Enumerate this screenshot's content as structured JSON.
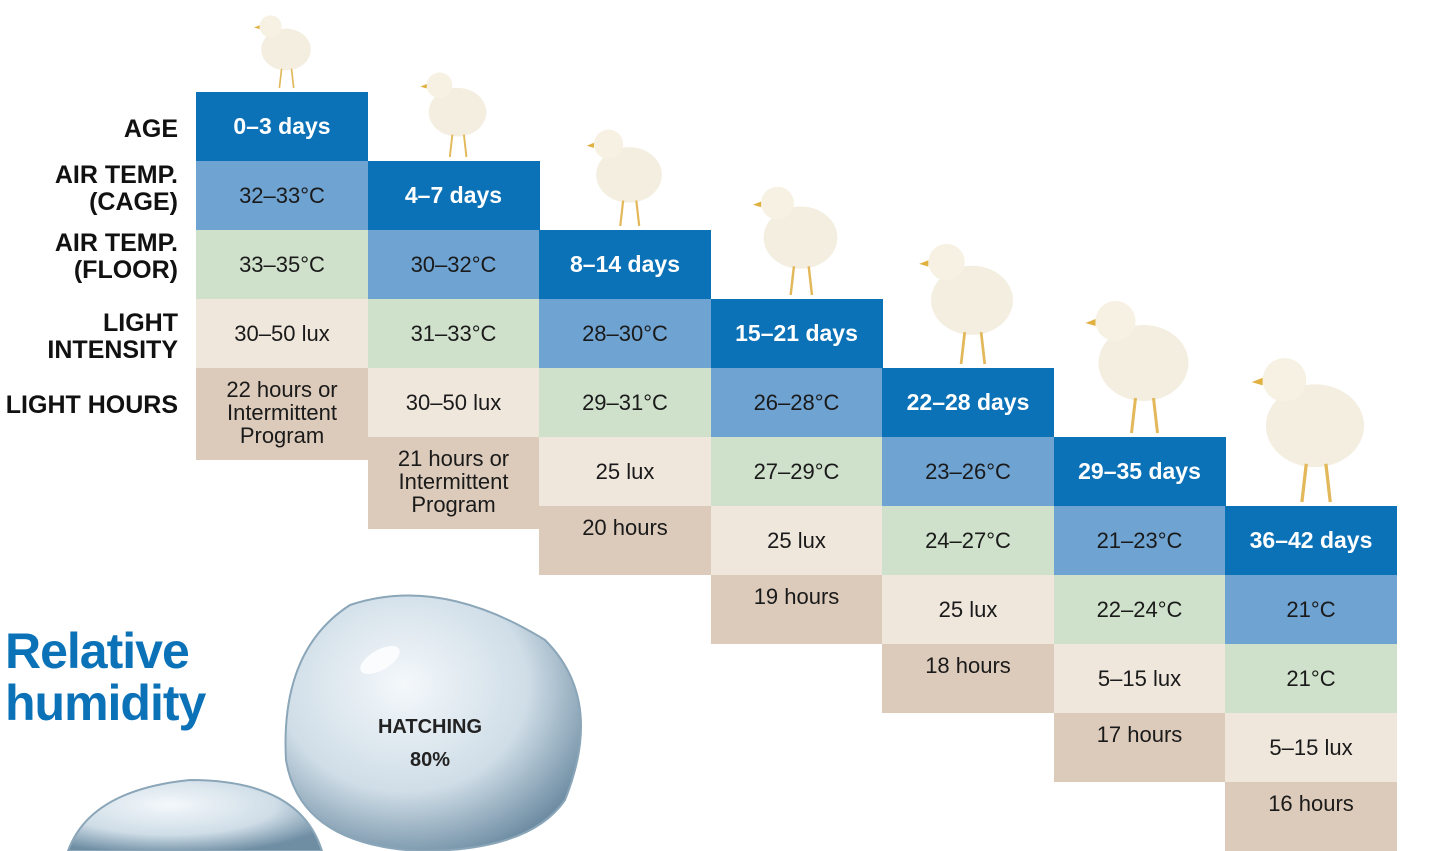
{
  "row_labels": [
    "AGE",
    "AIR TEMP. (CAGE)",
    "AIR TEMP. (FLOOR)",
    "LIGHT INTENSITY",
    "LIGHT HOURS"
  ],
  "columns": [
    {
      "age": "0–3 days",
      "cage": "32–33°C",
      "floor": "33–35°C",
      "intensity": "30–50 lux",
      "hours": "22 hours or Intermittent Program"
    },
    {
      "age": "4–7 days",
      "cage": "30–32°C",
      "floor": "31–33°C",
      "intensity": "30–50 lux",
      "hours": "21 hours or Intermittent Program"
    },
    {
      "age": "8–14 days",
      "cage": "28–30°C",
      "floor": "29–31°C",
      "intensity": "25 lux",
      "hours": "20 hours"
    },
    {
      "age": "15–21 days",
      "cage": "26–28°C",
      "floor": "27–29°C",
      "intensity": "25 lux",
      "hours": "19 hours"
    },
    {
      "age": "22–28 days",
      "cage": "23–26°C",
      "floor": "24–27°C",
      "intensity": "25 lux",
      "hours": "18 hours"
    },
    {
      "age": "29–35 days",
      "cage": "21–23°C",
      "floor": "22–24°C",
      "intensity": "5–15 lux",
      "hours": "17 hours"
    },
    {
      "age": "36–42 days",
      "cage": "21°C",
      "floor": "21°C",
      "intensity": "5–15 lux",
      "hours": "16 hours"
    }
  ],
  "humidity": {
    "title": "Relative humidity",
    "label": "HATCHING",
    "value": "80%"
  }
}
